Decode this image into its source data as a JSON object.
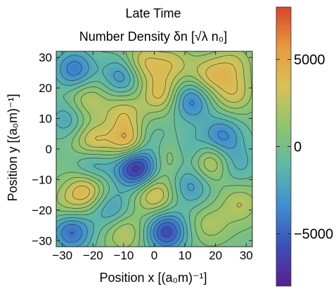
{
  "chart_data": {
    "type": "heatmap",
    "title": "Late Time",
    "subtitle": "Number Density  δn [√λ n₀]",
    "xlabel": "Position  x [(a₀m)⁻¹]",
    "ylabel": "Position  y [(a₀m)⁻¹]",
    "xlim": [
      -32,
      32
    ],
    "ylim": [
      -32,
      32
    ],
    "x_ticks": [
      -30,
      -20,
      -10,
      0,
      10,
      20,
      30
    ],
    "y_ticks": [
      -30,
      -20,
      -10,
      0,
      10,
      20,
      30
    ],
    "x_tick_labels": [
      "−30",
      "−20",
      "−10",
      "0",
      "10",
      "20",
      "30"
    ],
    "y_tick_labels": [
      "−30",
      "−20",
      "−10",
      "0",
      "10",
      "20",
      "30"
    ],
    "colorbar": {
      "range": [
        -8000,
        8000
      ],
      "ticks": [
        5000,
        0,
        -5000
      ],
      "tick_labels": [
        "5000",
        "0",
        "−5000"
      ],
      "colormap": [
        "#5b1e8e",
        "#3b4fb8",
        "#3e8ed0",
        "#5db8a8",
        "#8ec46e",
        "#d6c258",
        "#e79a3f",
        "#d9442b"
      ]
    },
    "features": [
      {
        "x": -26,
        "y": 26,
        "value": -4200
      },
      {
        "x": -6,
        "y": -6,
        "value": -7800
      },
      {
        "x": 4,
        "y": -27,
        "value": -6000
      },
      {
        "x": -27,
        "y": -27,
        "value": -4800
      },
      {
        "x": 12,
        "y": 16,
        "value": -4200
      },
      {
        "x": 22,
        "y": 4,
        "value": -4000
      },
      {
        "x": -10,
        "y": 24,
        "value": -3800
      },
      {
        "x": 11,
        "y": -1,
        "value": -3000
      },
      {
        "x": -20,
        "y": -5,
        "value": -3600
      },
      {
        "x": 18,
        "y": -27,
        "value": -3000
      },
      {
        "x": -28,
        "y": 10,
        "value": -2500
      },
      {
        "x": 12,
        "y": -12,
        "value": -3000
      },
      {
        "x": -14,
        "y": -20,
        "value": -3000
      },
      {
        "x": -2,
        "y": 3,
        "value": -2200
      },
      {
        "x": 27,
        "y": -5,
        "value": -2000
      },
      {
        "x": -8,
        "y": 2,
        "value": 5500
      },
      {
        "x": -20,
        "y": 2,
        "value": 4200
      },
      {
        "x": 18,
        "y": -4,
        "value": 3800
      },
      {
        "x": 0,
        "y": -15,
        "value": 4000
      },
      {
        "x": 18,
        "y": -26,
        "value": 5000
      },
      {
        "x": -22,
        "y": -13,
        "value": 4200
      },
      {
        "x": 2,
        "y": 18,
        "value": 3800
      },
      {
        "x": -10,
        "y": 12,
        "value": 3000
      },
      {
        "x": -4,
        "y": 28,
        "value": 3800
      },
      {
        "x": 18,
        "y": 24,
        "value": 3500
      },
      {
        "x": -22,
        "y": 16,
        "value": 2800
      },
      {
        "x": 26,
        "y": 18,
        "value": 3000
      },
      {
        "x": -10,
        "y": -27,
        "value": 3000
      },
      {
        "x": 6,
        "y": -2,
        "value": 2500
      },
      {
        "x": 28,
        "y": -18,
        "value": 2500
      },
      {
        "x": 6,
        "y": 28,
        "value": 2800
      },
      {
        "x": 26,
        "y": 28,
        "value": 2500
      },
      {
        "x": -28,
        "y": -18,
        "value": 2000
      }
    ]
  }
}
